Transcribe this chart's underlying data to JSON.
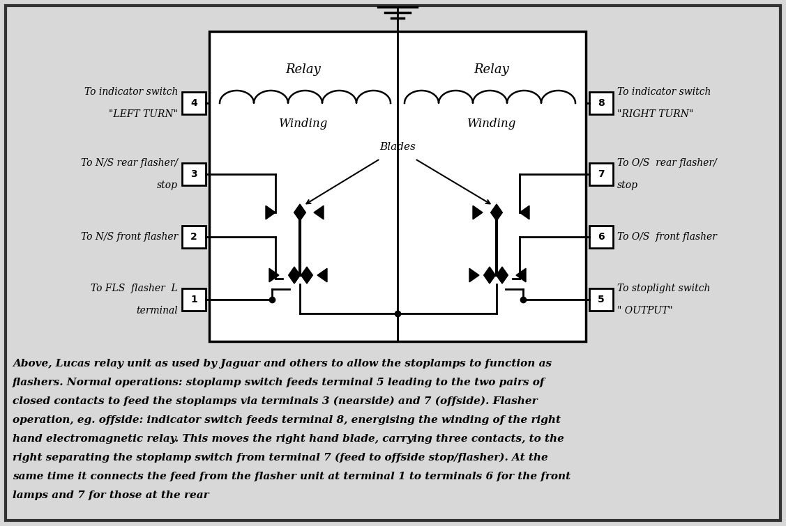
{
  "bg_color": "#d8d8d8",
  "line_color": "#000000",
  "caption_lines": [
    "Above, Lucas relay unit as used by Jaguar and others to allow the stoplamps to function as",
    "flashers. Normal operations: stoplamp switch feeds terminal 5 leading to the two pairs of",
    "closed contacts to feed the stoplamps via terminals 3 (nearside) and 7 (offside). Flasher",
    "operation, eg. offside: indicator switch feeds terminal 8, energising the winding of the right",
    "hand electromagnetic relay. This moves the right hand blade, carrying three contacts, to the",
    "right separating the stoplamp switch from terminal 7 (feed to offside stop/flasher). At the",
    "same time it connects the feed from the flasher unit at terminal 1 to terminals 6 for the front",
    "lamps and 7 for those at the rear"
  ],
  "left_labels": [
    [
      "To indicator switch",
      "\"LEFT TURN\""
    ],
    [
      "To N/S rear flasher/",
      "stop"
    ],
    [
      "To N/S front flasher",
      ""
    ],
    [
      "To FLS  flasher  L",
      "terminal"
    ]
  ],
  "right_labels": [
    [
      "To indicator switch",
      "\"RIGHT TURN\""
    ],
    [
      "To O/S  rear flasher/",
      "stop"
    ],
    [
      "To O/S  front flasher",
      ""
    ],
    [
      "To stoplight switch",
      "\" OUTPUT\""
    ]
  ],
  "left_term_nums": [
    "4",
    "3",
    "2",
    "1"
  ],
  "right_term_nums": [
    "8",
    "7",
    "6",
    "5"
  ]
}
